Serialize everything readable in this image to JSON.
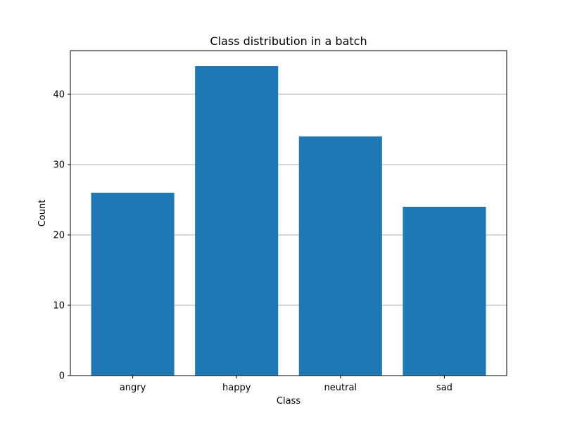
{
  "chart_data": {
    "type": "bar",
    "title": "Class distribution in a batch",
    "xlabel": "Class",
    "ylabel": "Count",
    "categories": [
      "angry",
      "happy",
      "neutral",
      "sad"
    ],
    "values": [
      26,
      44,
      34,
      24
    ],
    "ylim": [
      0,
      46.2
    ],
    "yticks": [
      0,
      10,
      20,
      30,
      40
    ],
    "grid": "y-major",
    "bar_color": "#1f77b4",
    "grid_color": "#b0b0b0"
  }
}
